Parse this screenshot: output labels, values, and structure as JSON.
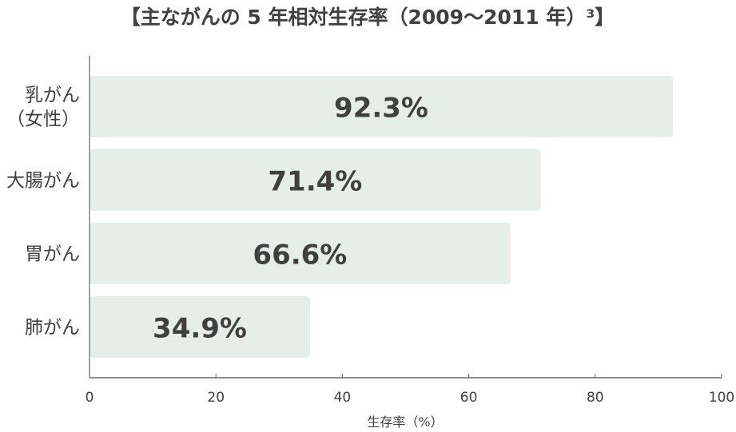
{
  "chart_data": {
    "type": "bar",
    "orientation": "horizontal",
    "title": "【主ながんの 5 年相対生存率（2009～2011 年）³】",
    "xlabel": "生存率（%）",
    "ylabel": "",
    "categories": [
      [
        "乳がん",
        "（女性）"
      ],
      [
        "大腸がん"
      ],
      [
        "胃がん"
      ],
      [
        "肺がん"
      ]
    ],
    "values": [
      92.3,
      71.4,
      66.6,
      34.9
    ],
    "data_labels": [
      "92.3%",
      "71.4%",
      "66.6%",
      "34.9%"
    ],
    "xlim": [
      0,
      100
    ],
    "xticks": [
      0,
      20,
      40,
      60,
      80,
      100
    ],
    "grid": false,
    "colors": {
      "bar": "#e6eeea",
      "text": "#404040",
      "axis": "#666666"
    }
  }
}
